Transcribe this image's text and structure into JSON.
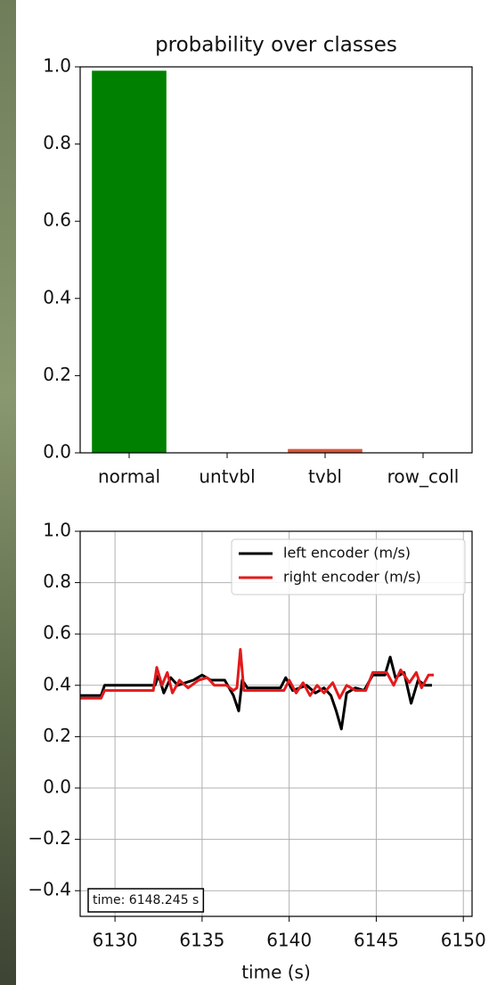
{
  "chart_data": [
    {
      "type": "bar",
      "title": "probability over classes",
      "categories": [
        "normal",
        "untvbl",
        "tvbl",
        "row_coll"
      ],
      "values": [
        0.99,
        0,
        0.01,
        0
      ],
      "colors": [
        "#008000",
        "#d62728",
        "#d9573a",
        "#d62728"
      ],
      "ylim": [
        0,
        1
      ],
      "yticks": [
        {
          "value": 0,
          "label": "0.0"
        },
        {
          "value": 0.2,
          "label": "0.2"
        },
        {
          "value": 0.4,
          "label": "0.4"
        },
        {
          "value": 0.6,
          "label": "0.6"
        },
        {
          "value": 0.8,
          "label": "0.8"
        },
        {
          "value": 1,
          "label": "1.0"
        }
      ],
      "grid": false
    },
    {
      "type": "line",
      "xlabel": "time (s)",
      "annotation": "time: 6148.245 s",
      "xlim": [
        6128.0,
        6150.5
      ],
      "xticks": [
        6130,
        6135,
        6140,
        6145,
        6150
      ],
      "ylim": [
        -0.5,
        1.0
      ],
      "yticks": [
        {
          "value": -0.4,
          "label": "−0.4"
        },
        {
          "value": -0.2,
          "label": "−0.2"
        },
        {
          "value": 0,
          "label": "0.0"
        },
        {
          "value": 0.2,
          "label": "0.2"
        },
        {
          "value": 0.4,
          "label": "0.4"
        },
        {
          "value": 0.6,
          "label": "0.6"
        },
        {
          "value": 0.8,
          "label": "0.8"
        },
        {
          "value": 1,
          "label": "1.0"
        }
      ],
      "grid": true,
      "legend": "upper right",
      "series": [
        {
          "name": "left encoder (m/s)",
          "color": "#000000",
          "x": [
            6128.0,
            6129.2,
            6129.4,
            6132.3,
            6132.5,
            6132.8,
            6133.2,
            6133.6,
            6134.5,
            6135.0,
            6135.5,
            6136.3,
            6136.8,
            6137.1,
            6137.3,
            6137.6,
            6139.5,
            6139.8,
            6140.2,
            6141.0,
            6141.5,
            6142.0,
            6142.4,
            6142.7,
            6143.0,
            6143.3,
            6143.8,
            6144.3,
            6144.8,
            6145.5,
            6145.8,
            6146.1,
            6146.6,
            6147.0,
            6147.4,
            6147.8,
            6148.2
          ],
          "values": [
            0.36,
            0.36,
            0.4,
            0.4,
            0.44,
            0.37,
            0.43,
            0.4,
            0.42,
            0.44,
            0.42,
            0.42,
            0.36,
            0.3,
            0.42,
            0.39,
            0.39,
            0.43,
            0.38,
            0.4,
            0.37,
            0.39,
            0.36,
            0.3,
            0.23,
            0.37,
            0.39,
            0.38,
            0.44,
            0.44,
            0.51,
            0.43,
            0.45,
            0.33,
            0.42,
            0.4,
            0.4
          ]
        },
        {
          "name": "right encoder (m/s)",
          "color": "#e31a1c",
          "x": [
            6128.0,
            6129.2,
            6129.4,
            6132.2,
            6132.4,
            6132.7,
            6133.0,
            6133.3,
            6133.7,
            6134.2,
            6134.8,
            6135.3,
            6135.7,
            6136.4,
            6136.8,
            6137.0,
            6137.2,
            6137.4,
            6139.7,
            6140.0,
            6140.4,
            6140.8,
            6141.2,
            6141.6,
            6142.0,
            6142.5,
            6142.9,
            6143.3,
            6143.8,
            6144.4,
            6144.8,
            6145.6,
            6146.0,
            6146.4,
            6146.9,
            6147.3,
            6147.6,
            6148.0,
            6148.3
          ],
          "values": [
            0.35,
            0.35,
            0.38,
            0.38,
            0.47,
            0.4,
            0.45,
            0.37,
            0.42,
            0.39,
            0.42,
            0.43,
            0.4,
            0.4,
            0.38,
            0.39,
            0.54,
            0.38,
            0.38,
            0.42,
            0.37,
            0.41,
            0.36,
            0.4,
            0.37,
            0.41,
            0.35,
            0.4,
            0.38,
            0.38,
            0.45,
            0.45,
            0.4,
            0.46,
            0.41,
            0.45,
            0.39,
            0.44,
            0.44
          ]
        }
      ]
    }
  ]
}
